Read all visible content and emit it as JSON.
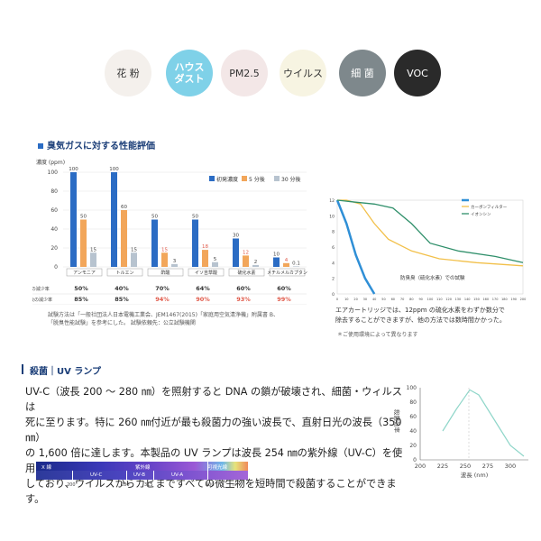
{
  "filters": [
    {
      "name": "filter-kafun",
      "label": "花 粉",
      "style": "c-light",
      "left": 116
    },
    {
      "name": "filter-house-dust",
      "label": "ハウス\nダスト",
      "style": "c-blue",
      "left": 184
    },
    {
      "name": "filter-pm25",
      "label": "PM2.5",
      "style": "c-pink",
      "left": 245
    },
    {
      "name": "filter-virus",
      "label": "ウイルス",
      "style": "c-cream",
      "left": 310
    },
    {
      "name": "filter-saikin",
      "label": "細 菌",
      "style": "c-gray",
      "left": 376
    },
    {
      "name": "filter-voc",
      "label": "VOC",
      "style": "c-dark",
      "left": 437
    }
  ],
  "odor": {
    "title": "臭気ガスに対する性能評価",
    "unit_label": "濃度 (ppm)",
    "row1_label": "5 分後の減少率",
    "row2_label": "30 分後の減少率",
    "row1": [
      "50%",
      "40%",
      "70%",
      "64%",
      "60%",
      "60%"
    ],
    "row2": [
      "85%",
      "85%",
      "94%",
      "90%",
      "93%",
      "99%"
    ],
    "notes": [
      "試験方法は「一般社団法人日本電機工業会、JEM1467(2015)「家庭用空気清浄機」附属書 B、",
      "「脱臭性能試験」を参考にした。 試験依頼先：公立試験機関"
    ]
  },
  "chart_data": [
    {
      "type": "bar",
      "title": "",
      "ylim": [
        0,
        100
      ],
      "yticks": [
        0,
        20,
        40,
        60,
        80,
        100
      ],
      "categories": [
        "アンモニア",
        "トルエン",
        "酢酸",
        "イソ吉草酸",
        "硫化水素",
        "メチルメルカプタン"
      ],
      "series": [
        {
          "name": "初発濃度",
          "values": [
            100,
            100,
            50,
            50,
            30,
            10
          ],
          "labels": [
            "100",
            "100",
            "50",
            "50",
            "30",
            "10"
          ],
          "color": "#2b6cc4"
        },
        {
          "name": "5 分後",
          "values": [
            50,
            60,
            15,
            18,
            12,
            4
          ],
          "labels": [
            "50",
            "60",
            "15",
            "18",
            "12",
            "4"
          ],
          "color": "#f2a65a"
        },
        {
          "name": "30 分後",
          "values": [
            15,
            15,
            3,
            5,
            2,
            0.1
          ],
          "labels": [
            "15",
            "15",
            "3",
            "5",
            "2",
            "0.1"
          ],
          "color": "#b7c3cf"
        }
      ]
    },
    {
      "type": "line",
      "title": "",
      "ylim": [
        0,
        12
      ],
      "yticks": [
        0,
        2,
        4,
        6,
        8,
        10,
        12
      ],
      "x": [
        0,
        10,
        20,
        30,
        40,
        50,
        60,
        70,
        80,
        90,
        100,
        110,
        120,
        130,
        140,
        150,
        160,
        170,
        180,
        190,
        200
      ],
      "series": [
        {
          "name": "",
          "color": "#2f8fd6",
          "values": [
            [
              0,
              12
            ],
            [
              10,
              9
            ],
            [
              20,
              5
            ],
            [
              30,
              2
            ],
            [
              40,
              0
            ]
          ]
        },
        {
          "name": "カーボンフィルター",
          "color": "#f2c04a",
          "values": [
            [
              0,
              12
            ],
            [
              10,
              12
            ],
            [
              25,
              11.5
            ],
            [
              40,
              9
            ],
            [
              55,
              7
            ],
            [
              80,
              5.5
            ],
            [
              110,
              4.5
            ],
            [
              150,
              4
            ],
            [
              200,
              3.6
            ]
          ]
        },
        {
          "name": "イオンシン",
          "color": "#2f8f6a",
          "values": [
            [
              0,
              12
            ],
            [
              15,
              11.8
            ],
            [
              40,
              11.5
            ],
            [
              60,
              11
            ],
            [
              80,
              9
            ],
            [
              100,
              6.5
            ],
            [
              130,
              5.5
            ],
            [
              170,
              4.8
            ],
            [
              200,
              4
            ]
          ]
        }
      ]
    },
    {
      "type": "line",
      "title": "",
      "xlabel": "波長 (nm)",
      "ylabel": "殺菌効率",
      "xlim": [
        200,
        320
      ],
      "ylim": [
        0,
        100
      ],
      "xticks": [
        200,
        225,
        250,
        275,
        300
      ],
      "yticks": [
        0,
        20,
        40,
        60,
        80,
        100
      ],
      "series": [
        {
          "name": "",
          "color": "#8fd6c9",
          "values": [
            [
              225,
              40
            ],
            [
              240,
              70
            ],
            [
              255,
              97
            ],
            [
              265,
              90
            ],
            [
              275,
              70
            ],
            [
              290,
              40
            ],
            [
              300,
              20
            ],
            [
              315,
              5
            ]
          ]
        }
      ]
    }
  ],
  "comparison": {
    "legend_items": [
      "カーボンフィルター",
      "イオンシン"
    ],
    "label_in_plot": "防臭臭（硫化水素）での試験",
    "x_tick_labels": [
      "0",
      "10",
      "20",
      "30",
      "40",
      "50",
      "60",
      "70",
      "80",
      "90",
      "100",
      "110",
      "120",
      "130",
      "140",
      "150",
      "160",
      "170",
      "180",
      "190",
      "200"
    ],
    "text": [
      "エアカートリッジでは、12ppm の硫化水素をわずか数分で",
      "除去することができますが、他の方法では数時間かかった。"
    ],
    "note": "＊ご使用環境によって異なります"
  },
  "uv": {
    "heading": "殺菌｜UV ランプ",
    "paragraphs": [
      "UV-C（波長 200 ～ 280 ㎚）を照射すると DNA の鎖が破壊され、細菌・ウィルスは",
      "死に至ります。特に 260 ㎚付近が最も殺菌力の強い波長で、直射日光の波長（350 ㎚）",
      "の 1,600 倍に達します。本製品の UV ランプは波長 254 ㎚の紫外線（UV-C）を使用",
      "しており、ウイルスからカビまですべての微生物を短時間で殺菌することができます。"
    ],
    "spectrum": {
      "xray": "X 線",
      "uv": "紫外線",
      "visible": "可視光線",
      "uvc": "UV-C",
      "uvb": "UV-B",
      "uva": "UV-A",
      "ticks": [
        "200",
        "280",
        "315",
        "400"
      ],
      "unit": "nm"
    },
    "graph": {
      "yticks": [
        "100",
        "80",
        "60",
        "40",
        "20",
        "0"
      ],
      "xticks": [
        "200",
        "225",
        "250",
        "275",
        "300"
      ],
      "xlabel": "波長 (nm)",
      "ylabel": "殺菌効率"
    }
  }
}
